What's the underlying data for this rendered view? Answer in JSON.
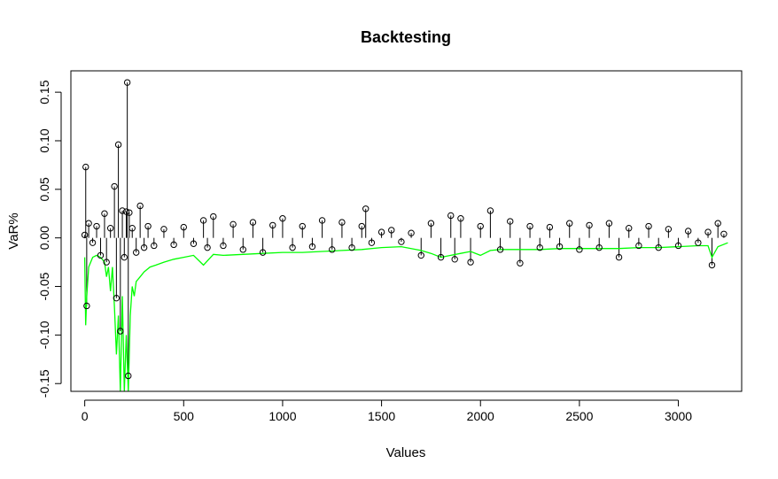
{
  "chart_data": {
    "type": "scatter",
    "title": "Backtesting",
    "xlabel": "Values",
    "ylabel": "VaR%",
    "xlim": [
      -70,
      3320
    ],
    "ylim": [
      -0.158,
      0.172
    ],
    "x_ticks": [
      0,
      500,
      1000,
      1500,
      2000,
      2500,
      3000
    ],
    "x_tick_labels": [
      "0",
      "500",
      "1000",
      "1500",
      "2000",
      "2500",
      "3000"
    ],
    "y_ticks": [
      -0.15,
      -0.1,
      -0.05,
      0.0,
      0.05,
      0.1,
      0.15
    ],
    "y_tick_labels": [
      "-0.15",
      "-0.10",
      "-0.05",
      "0.00",
      "0.05",
      "0.10",
      "0.15"
    ],
    "grid": false,
    "colors": {
      "returns_points": "#000000",
      "returns_lines": "#000000",
      "var_line": "#00ff00"
    },
    "series": [
      {
        "role": "returns-points",
        "style": "points-and-vertical-lines",
        "x": [
          0,
          5,
          10,
          20,
          40,
          60,
          80,
          100,
          110,
          130,
          150,
          160,
          170,
          180,
          190,
          200,
          210,
          215,
          220,
          225,
          240,
          260,
          280,
          300,
          320,
          350,
          400,
          450,
          500,
          550,
          600,
          620,
          650,
          700,
          750,
          800,
          850,
          900,
          950,
          1000,
          1050,
          1100,
          1150,
          1200,
          1250,
          1300,
          1350,
          1400,
          1420,
          1450,
          1500,
          1550,
          1600,
          1650,
          1700,
          1750,
          1800,
          1850,
          1870,
          1900,
          1950,
          2000,
          2050,
          2100,
          2150,
          2200,
          2250,
          2300,
          2350,
          2400,
          2450,
          2500,
          2550,
          2600,
          2650,
          2700,
          2750,
          2800,
          2850,
          2900,
          2950,
          3000,
          3050,
          3100,
          3150,
          3170,
          3200,
          3230
        ],
        "y": [
          0.003,
          0.073,
          -0.07,
          0.015,
          -0.005,
          0.012,
          -0.018,
          0.025,
          -0.025,
          0.01,
          0.053,
          -0.062,
          0.096,
          -0.096,
          0.028,
          -0.02,
          0.027,
          0.16,
          -0.142,
          0.026,
          0.01,
          -0.015,
          0.033,
          -0.01,
          0.012,
          -0.008,
          0.009,
          -0.007,
          0.011,
          -0.006,
          0.018,
          -0.01,
          0.022,
          -0.008,
          0.014,
          -0.012,
          0.016,
          -0.015,
          0.013,
          0.02,
          -0.01,
          0.012,
          -0.009,
          0.018,
          -0.012,
          0.016,
          -0.01,
          0.012,
          0.03,
          -0.005,
          0.006,
          0.008,
          -0.004,
          0.005,
          -0.018,
          0.015,
          -0.02,
          0.023,
          -0.022,
          0.02,
          -0.025,
          0.012,
          0.028,
          -0.012,
          0.017,
          -0.026,
          0.012,
          -0.01,
          0.011,
          -0.009,
          0.015,
          -0.012,
          0.013,
          -0.01,
          0.015,
          -0.02,
          0.01,
          -0.008,
          0.012,
          -0.01,
          0.009,
          -0.008,
          0.007,
          -0.005,
          0.006,
          -0.028,
          0.015,
          0.004
        ]
      },
      {
        "role": "var-line",
        "style": "line",
        "x": [
          0,
          5,
          10,
          20,
          40,
          60,
          80,
          100,
          110,
          120,
          130,
          140,
          150,
          160,
          170,
          180,
          190,
          200,
          210,
          220,
          230,
          240,
          250,
          260,
          280,
          300,
          330,
          360,
          400,
          450,
          500,
          550,
          600,
          650,
          700,
          800,
          900,
          1000,
          1100,
          1200,
          1300,
          1400,
          1500,
          1600,
          1700,
          1750,
          1800,
          1850,
          1900,
          1950,
          2000,
          2050,
          2100,
          2200,
          2300,
          2400,
          2500,
          2600,
          2700,
          2800,
          2900,
          3000,
          3100,
          3150,
          3170,
          3200,
          3250
        ],
        "y": [
          -0.02,
          -0.09,
          -0.06,
          -0.03,
          -0.02,
          -0.018,
          -0.02,
          -0.025,
          -0.04,
          -0.03,
          -0.055,
          -0.03,
          -0.07,
          -0.12,
          -0.08,
          -0.158,
          -0.06,
          -0.158,
          -0.1,
          -0.158,
          -0.08,
          -0.05,
          -0.06,
          -0.045,
          -0.04,
          -0.035,
          -0.03,
          -0.028,
          -0.025,
          -0.022,
          -0.02,
          -0.018,
          -0.028,
          -0.017,
          -0.018,
          -0.017,
          -0.016,
          -0.015,
          -0.015,
          -0.014,
          -0.013,
          -0.012,
          -0.01,
          -0.009,
          -0.013,
          -0.016,
          -0.02,
          -0.018,
          -0.016,
          -0.014,
          -0.018,
          -0.013,
          -0.012,
          -0.012,
          -0.012,
          -0.011,
          -0.011,
          -0.011,
          -0.011,
          -0.01,
          -0.01,
          -0.009,
          -0.008,
          -0.008,
          -0.02,
          -0.009,
          -0.005
        ]
      }
    ]
  }
}
